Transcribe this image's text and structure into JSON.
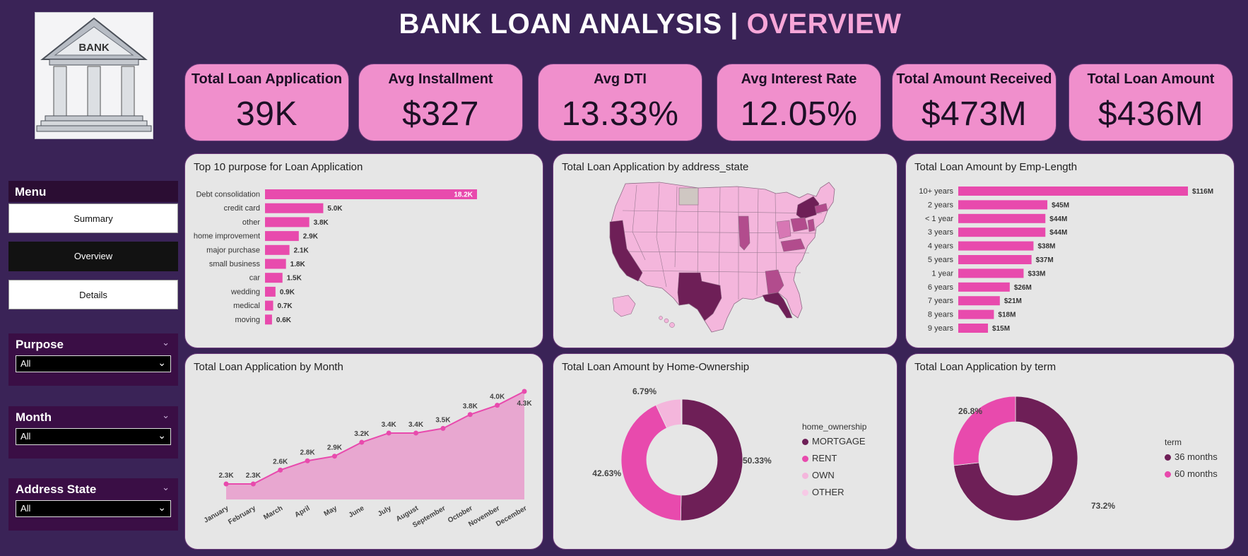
{
  "title": {
    "main": "BANK LOAN ANALYSIS | ",
    "accent": "OVERVIEW"
  },
  "logo": {
    "text": "BANK"
  },
  "kpis": [
    {
      "label": "Total Loan Application",
      "value": "39K"
    },
    {
      "label": "Avg Installment",
      "value": "$327"
    },
    {
      "label": "Avg DTI",
      "value": "13.33%"
    },
    {
      "label": "Avg Interest Rate",
      "value": "12.05%"
    },
    {
      "label": "Total Amount Received",
      "value": "$473M"
    },
    {
      "label": "Total Loan Amount",
      "value": "$436M"
    }
  ],
  "menu": {
    "title": "Menu",
    "summary": "Summary",
    "overview": "Overview",
    "details": "Details"
  },
  "slicers": {
    "purpose": {
      "label": "Purpose",
      "value": "All"
    },
    "month": {
      "label": "Month",
      "value": "All"
    },
    "state": {
      "label": "Address State",
      "value": "All"
    }
  },
  "colors": {
    "bg": "#3a2357",
    "kpi": "#f08fcc",
    "bar": "#e84aad",
    "dark": "#6e1f57",
    "mid": "#e84aad",
    "light": "#f4b6dc"
  },
  "chart_data": [
    {
      "id": "purpose",
      "type": "bar",
      "orientation": "horizontal",
      "title": "Top 10 purpose for Loan Application",
      "categories": [
        "Debt consolidation",
        "credit card",
        "other",
        "home improvement",
        "major purchase",
        "small business",
        "car",
        "wedding",
        "medical",
        "moving"
      ],
      "values": [
        18.2,
        5.0,
        3.8,
        2.9,
        2.1,
        1.8,
        1.5,
        0.9,
        0.7,
        0.6
      ],
      "labels": [
        "18.2K",
        "5.0K",
        "3.8K",
        "2.9K",
        "2.1K",
        "1.8K",
        "1.5K",
        "0.9K",
        "0.7K",
        "0.6K"
      ]
    },
    {
      "id": "state",
      "type": "map",
      "title": "Total Loan Application by address_state",
      "highlight_high": [
        "CA",
        "TX",
        "FL",
        "NY"
      ],
      "highlight_mid": [
        "IL",
        "GA",
        "NJ",
        "PA",
        "VA",
        "MA",
        "OH"
      ],
      "no_data": [
        "ND"
      ]
    },
    {
      "id": "emp",
      "type": "bar",
      "orientation": "horizontal",
      "title": "Total Loan Amount by Emp-Length",
      "categories": [
        "10+ years",
        "2 years",
        "< 1 year",
        "3 years",
        "4 years",
        "5 years",
        "1 year",
        "6 years",
        "7 years",
        "8 years",
        "9 years"
      ],
      "values": [
        116,
        45,
        44,
        44,
        38,
        37,
        33,
        26,
        21,
        18,
        15
      ],
      "labels": [
        "$116M",
        "$45M",
        "$44M",
        "$44M",
        "$38M",
        "$37M",
        "$33M",
        "$26M",
        "$21M",
        "$18M",
        "$15M"
      ]
    },
    {
      "id": "month",
      "type": "area",
      "title": "Total Loan Application by Month",
      "categories": [
        "January",
        "February",
        "March",
        "April",
        "May",
        "June",
        "July",
        "August",
        "September",
        "October",
        "November",
        "December"
      ],
      "values": [
        2.3,
        2.3,
        2.6,
        2.8,
        2.9,
        3.2,
        3.4,
        3.4,
        3.5,
        3.8,
        4.0,
        4.3
      ],
      "labels": [
        "2.3K",
        "2.3K",
        "2.6K",
        "2.8K",
        "2.9K",
        "3.2K",
        "3.4K",
        "3.4K",
        "3.5K",
        "3.8K",
        "4.0K",
        "4.3K"
      ]
    },
    {
      "id": "home",
      "type": "pie",
      "title": "Total Loan Amount by Home-Ownership",
      "legend_title": "home_ownership",
      "categories": [
        "MORTGAGE",
        "RENT",
        "OWN",
        "OTHER"
      ],
      "values": [
        50.33,
        42.63,
        6.79,
        0.25
      ],
      "labels": [
        "50.33%",
        "42.63%",
        "6.79%",
        ""
      ],
      "colors": [
        "#6e1f57",
        "#e84aad",
        "#f4b6dc",
        "#f7c9e6"
      ]
    },
    {
      "id": "term",
      "type": "pie",
      "title": "Total Loan Application by term",
      "legend_title": "term",
      "categories": [
        "36 months",
        "60 months"
      ],
      "values": [
        73.2,
        26.8
      ],
      "labels": [
        "73.2%",
        "26.8%"
      ],
      "colors": [
        "#6e1f57",
        "#e84aad"
      ]
    }
  ]
}
